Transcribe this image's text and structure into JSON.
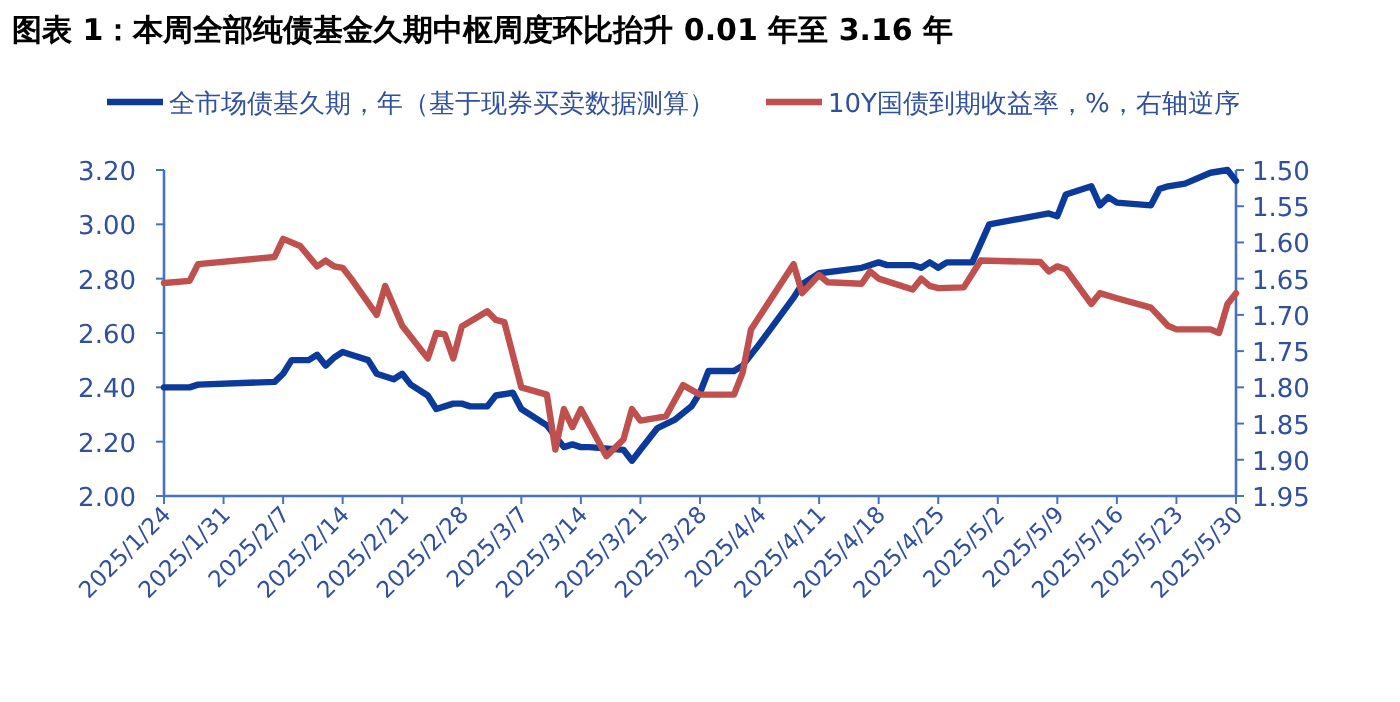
{
  "chart_data": {
    "type": "line",
    "title": "图表 1：本周全部纯债基金久期中枢周度环比抬升 0.01 年至 3.16 年",
    "legend": "top",
    "grid": false,
    "xlim": [
      "2025-01-24",
      "2025-05-30"
    ],
    "xticks": [
      {
        "value": "2025-01-24",
        "label": "2025/1/24"
      },
      {
        "value": "2025-01-31",
        "label": "2025/1/31"
      },
      {
        "value": "2025-02-07",
        "label": "2025/2/7"
      },
      {
        "value": "2025-02-14",
        "label": "2025/2/14"
      },
      {
        "value": "2025-02-21",
        "label": "2025/2/21"
      },
      {
        "value": "2025-02-28",
        "label": "2025/2/28"
      },
      {
        "value": "2025-03-07",
        "label": "2025/3/7"
      },
      {
        "value": "2025-03-14",
        "label": "2025/3/14"
      },
      {
        "value": "2025-03-21",
        "label": "2025/3/21"
      },
      {
        "value": "2025-03-28",
        "label": "2025/3/28"
      },
      {
        "value": "2025-04-04",
        "label": "2025/4/4"
      },
      {
        "value": "2025-04-11",
        "label": "2025/4/11"
      },
      {
        "value": "2025-04-18",
        "label": "2025/4/18"
      },
      {
        "value": "2025-04-25",
        "label": "2025/4/25"
      },
      {
        "value": "2025-05-02",
        "label": "2025/5/2"
      },
      {
        "value": "2025-05-09",
        "label": "2025/5/9"
      },
      {
        "value": "2025-05-16",
        "label": "2025/5/16"
      },
      {
        "value": "2025-05-23",
        "label": "2025/5/23"
      },
      {
        "value": "2025-05-30",
        "label": "2025/5/30"
      }
    ],
    "ylim": [
      2.0,
      3.2
    ],
    "yticks": [
      {
        "value": 2.0,
        "label": "2.00"
      },
      {
        "value": 2.2,
        "label": "2.20"
      },
      {
        "value": 2.4,
        "label": "2.40"
      },
      {
        "value": 2.6,
        "label": "2.60"
      },
      {
        "value": 2.8,
        "label": "2.80"
      },
      {
        "value": 3.0,
        "label": "3.00"
      },
      {
        "value": 3.2,
        "label": "3.20"
      }
    ],
    "y2lim": [
      1.95,
      1.5
    ],
    "y2ticks": [
      {
        "value": 1.5,
        "label": "1.50"
      },
      {
        "value": 1.55,
        "label": "1.55"
      },
      {
        "value": 1.6,
        "label": "1.60"
      },
      {
        "value": 1.65,
        "label": "1.65"
      },
      {
        "value": 1.7,
        "label": "1.70"
      },
      {
        "value": 1.75,
        "label": "1.75"
      },
      {
        "value": 1.8,
        "label": "1.80"
      },
      {
        "value": 1.85,
        "label": "1.85"
      },
      {
        "value": 1.9,
        "label": "1.90"
      },
      {
        "value": 1.95,
        "label": "1.95"
      }
    ],
    "series": [
      {
        "name": "全市场债基久期，年（基于现券买卖数据测算）",
        "color": "#0b3a9a",
        "x": [
          "2025-01-24",
          "2025-01-27",
          "2025-01-28",
          "2025-02-06",
          "2025-02-07",
          "2025-02-08",
          "2025-02-10",
          "2025-02-11",
          "2025-02-12",
          "2025-02-13",
          "2025-02-14",
          "2025-02-15",
          "2025-02-17",
          "2025-02-18",
          "2025-02-20",
          "2025-02-21",
          "2025-02-22",
          "2025-02-24",
          "2025-02-25",
          "2025-02-27",
          "2025-02-28",
          "2025-03-01",
          "2025-03-03",
          "2025-03-04",
          "2025-03-06",
          "2025-03-07",
          "2025-03-10",
          "2025-03-12",
          "2025-03-13",
          "2025-03-14",
          "2025-03-15",
          "2025-03-19",
          "2025-03-20",
          "2025-03-21",
          "2025-03-23",
          "2025-03-25",
          "2025-03-27",
          "2025-03-28",
          "2025-03-29",
          "2025-04-01",
          "2025-04-02",
          "2025-04-04",
          "2025-04-08",
          "2025-04-09",
          "2025-04-11",
          "2025-04-16",
          "2025-04-18",
          "2025-04-19",
          "2025-04-22",
          "2025-04-23",
          "2025-04-24",
          "2025-04-25",
          "2025-04-26",
          "2025-04-29",
          "2025-04-30",
          "2025-05-01",
          "2025-05-08",
          "2025-05-09",
          "2025-05-10",
          "2025-05-13",
          "2025-05-14",
          "2025-05-15",
          "2025-05-16",
          "2025-05-20",
          "2025-05-21",
          "2025-05-22",
          "2025-05-24",
          "2025-05-27",
          "2025-05-29",
          "2025-05-30"
        ],
        "values": [
          2.4,
          2.4,
          2.41,
          2.42,
          2.45,
          2.5,
          2.5,
          2.52,
          2.48,
          2.51,
          2.53,
          2.52,
          2.5,
          2.45,
          2.43,
          2.45,
          2.41,
          2.37,
          2.32,
          2.34,
          2.34,
          2.33,
          2.33,
          2.37,
          2.38,
          2.32,
          2.26,
          2.18,
          2.19,
          2.18,
          2.18,
          2.17,
          2.13,
          2.17,
          2.25,
          2.28,
          2.33,
          2.38,
          2.46,
          2.46,
          2.48,
          2.56,
          2.73,
          2.78,
          2.82,
          2.84,
          2.86,
          2.85,
          2.85,
          2.84,
          2.86,
          2.84,
          2.86,
          2.86,
          2.93,
          3.0,
          3.04,
          3.03,
          3.11,
          3.14,
          3.07,
          3.1,
          3.08,
          3.07,
          3.13,
          3.14,
          3.15,
          3.19,
          3.2,
          3.16
        ]
      },
      {
        "name": "10Y国债到期收益率，%，右轴逆序",
        "color": "#c0504d",
        "axis": "y2",
        "x": [
          "2025-01-24",
          "2025-01-27",
          "2025-01-28",
          "2025-02-06",
          "2025-02-07",
          "2025-02-09",
          "2025-02-11",
          "2025-02-12",
          "2025-02-13",
          "2025-02-14",
          "2025-02-15",
          "2025-02-18",
          "2025-02-19",
          "2025-02-21",
          "2025-02-24",
          "2025-02-25",
          "2025-02-26",
          "2025-02-27",
          "2025-02-28",
          "2025-03-03",
          "2025-03-04",
          "2025-03-05",
          "2025-03-07",
          "2025-03-10",
          "2025-03-11",
          "2025-03-12",
          "2025-03-13",
          "2025-03-14",
          "2025-03-17",
          "2025-03-19",
          "2025-03-20",
          "2025-03-21",
          "2025-03-24",
          "2025-03-26",
          "2025-03-28",
          "2025-04-01",
          "2025-04-02",
          "2025-04-03",
          "2025-04-08",
          "2025-04-09",
          "2025-04-11",
          "2025-04-12",
          "2025-04-16",
          "2025-04-17",
          "2025-04-18",
          "2025-04-22",
          "2025-04-23",
          "2025-04-24",
          "2025-04-25",
          "2025-04-28",
          "2025-04-30",
          "2025-05-07",
          "2025-05-08",
          "2025-05-09",
          "2025-05-10",
          "2025-05-13",
          "2025-05-14",
          "2025-05-16",
          "2025-05-20",
          "2025-05-22",
          "2025-05-23",
          "2025-05-27",
          "2025-05-28",
          "2025-05-29",
          "2025-05-30"
        ],
        "values": [
          1.656,
          1.653,
          1.63,
          1.62,
          1.595,
          1.605,
          1.633,
          1.625,
          1.633,
          1.635,
          1.65,
          1.7,
          1.66,
          1.715,
          1.76,
          1.725,
          1.727,
          1.76,
          1.716,
          1.695,
          1.707,
          1.71,
          1.8,
          1.81,
          1.886,
          1.83,
          1.855,
          1.83,
          1.895,
          1.872,
          1.83,
          1.846,
          1.84,
          1.797,
          1.81,
          1.81,
          1.78,
          1.72,
          1.63,
          1.67,
          1.645,
          1.655,
          1.657,
          1.64,
          1.65,
          1.665,
          1.65,
          1.66,
          1.663,
          1.662,
          1.625,
          1.627,
          1.64,
          1.633,
          1.637,
          1.685,
          1.67,
          1.677,
          1.69,
          1.715,
          1.72,
          1.72,
          1.725,
          1.685,
          1.67
        ]
      }
    ]
  }
}
